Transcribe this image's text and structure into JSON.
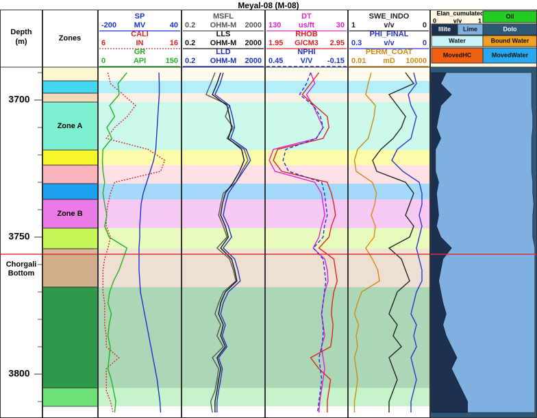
{
  "chart_data": {
    "type": "well-log",
    "title": "Meyal-08 (M-08)",
    "depth_label": [
      "Depth",
      "(m)"
    ],
    "zones_label": "Zones",
    "ylim": [
      3688,
      3816
    ],
    "yticks": [
      3700,
      3750,
      3800
    ],
    "yticks_minor": [
      3690,
      3710,
      3720,
      3730,
      3740,
      3760,
      3770,
      3780,
      3790,
      3810
    ],
    "marker": {
      "depth": 3756.25,
      "label": [
        "Chorgali",
        "Bottom"
      ],
      "label_depth": 3760,
      "color": "#e03030"
    },
    "zones": [
      {
        "top": 3688,
        "bottom": 3693,
        "color": "#fdf6cf"
      },
      {
        "top": 3693,
        "bottom": 3697.5,
        "color": "#43d8f0"
      },
      {
        "top": 3697.5,
        "bottom": 3700.75,
        "color": "#f2d9b8"
      },
      {
        "top": 3700.75,
        "bottom": 3718.25,
        "color": "#7cf0d0",
        "label": "Zone A"
      },
      {
        "top": 3718.25,
        "bottom": 3723.75,
        "color": "#f5f52a"
      },
      {
        "top": 3723.75,
        "bottom": 3730.5,
        "color": "#f9b4bd"
      },
      {
        "top": 3730.5,
        "bottom": 3736.25,
        "color": "#1ea0f0"
      },
      {
        "top": 3736.25,
        "bottom": 3746.75,
        "color": "#ea7be6",
        "label": "Zone B"
      },
      {
        "top": 3746.75,
        "bottom": 3754.25,
        "color": "#c6f55a"
      },
      {
        "top": 3754.25,
        "bottom": 3756.25,
        "color": "#d8b79a"
      },
      {
        "top": 3756.25,
        "bottom": 3768.25,
        "color": "#d2ae8c"
      },
      {
        "top": 3768.25,
        "bottom": 3805,
        "color": "#2e9a4a"
      },
      {
        "top": 3805,
        "bottom": 3811.75,
        "color": "#6ee27a"
      }
    ],
    "x": [
      3690,
      3694,
      3698,
      3702,
      3706,
      3710,
      3714,
      3718,
      3722,
      3726,
      3730,
      3734,
      3738,
      3742,
      3746,
      3750,
      3754,
      3758,
      3762,
      3766,
      3770,
      3774,
      3778,
      3782,
      3786,
      3790,
      3794,
      3798,
      3802,
      3806,
      3810,
      3814
    ],
    "tracks": [
      {
        "curves": [
          {
            "name": "SP",
            "unit": "MV",
            "xlim": [
              -200,
              40
            ],
            "color": "#1a2fd0",
            "style": "solid",
            "values": [
              -25,
              -24,
              -24,
              -26,
              -28,
              -30,
              -32,
              -34,
              -40,
              -50,
              -60,
              -70,
              -76,
              -78,
              -80,
              -80,
              -82,
              -82,
              -82,
              -80,
              -78,
              -72,
              -66,
              -60,
              -54,
              -48,
              -42,
              -36,
              -30,
              -26,
              -22,
              -20
            ]
          },
          {
            "name": "CALI",
            "unit": "IN",
            "xlim": [
              6,
              16
            ],
            "color": "#e02020",
            "style": "dotted",
            "values": [
              7.2,
              7.5,
              9,
              10.5,
              9.5,
              8,
              7,
              12,
              14,
              13.5,
              8,
              7.5,
              7.2,
              7,
              7,
              7.5,
              7.2,
              6.8,
              6.6,
              6.6,
              6.6,
              6.8,
              6.8,
              6.8,
              7,
              7,
              8.5,
              7,
              7,
              7,
              7.5,
              7.8
            ]
          },
          {
            "name": "GR",
            "unit": "API",
            "xlim": [
              0,
              150
            ],
            "color": "#20b020",
            "style": "solid",
            "values": [
              52,
              36,
              38,
              21,
              30,
              16,
              25,
              9,
              8,
              9,
              12,
              9,
              12,
              16,
              12,
              20,
              52,
              45,
              38,
              28,
              21,
              18,
              24,
              20,
              18,
              22,
              20,
              18,
              24,
              28,
              32,
              30
            ]
          }
        ]
      },
      {
        "curves": [
          {
            "name": "MSFL",
            "unit": "OHM-M",
            "xlim": [
              0.2,
              2000
            ],
            "log": true,
            "color": "#555555",
            "style": "solid",
            "values": [
              8,
              5,
              3,
              40,
              25,
              60,
              30,
              200,
              300,
              150,
              80,
              20,
              15,
              12,
              20,
              30,
              10,
              40,
              60,
              80,
              20,
              12,
              8,
              15,
              10,
              20,
              6,
              12,
              10,
              8,
              5,
              6
            ]
          },
          {
            "name": "LLS",
            "unit": "OHM-M",
            "xlim": [
              0.2,
              2000
            ],
            "log": true,
            "color": "#111111",
            "style": "solid",
            "values": [
              15,
              10,
              6,
              30,
              40,
              50,
              35,
              150,
              200,
              120,
              60,
              25,
              18,
              15,
              25,
              35,
              15,
              50,
              70,
              90,
              25,
              15,
              12,
              20,
              15,
              25,
              10,
              15,
              12,
              10,
              8,
              8
            ]
          },
          {
            "name": "LLD",
            "unit": "OHM-M",
            "xlim": [
              0.2,
              2000
            ],
            "log": true,
            "color": "#2030c0",
            "style": "solid",
            "values": [
              20,
              14,
              8,
              40,
              55,
              70,
              45,
              250,
              400,
              180,
              80,
              35,
              25,
              20,
              35,
              50,
              20,
              70,
              100,
              130,
              35,
              20,
              15,
              25,
              18,
              30,
              12,
              18,
              15,
              12,
              10,
              10
            ]
          }
        ]
      },
      {
        "curves": [
          {
            "name": "DT",
            "unit": "us/ft",
            "xlim": [
              130,
              30
            ],
            "color": "#e020d0",
            "style": "solid",
            "values": [
              75,
              70,
              80,
              72,
              66,
              60,
              68,
              120,
              125,
              118,
              70,
              62,
              60,
              58,
              62,
              65,
              72,
              58,
              55,
              54,
              58,
              60,
              62,
              60,
              58,
              62,
              60,
              58,
              60,
              62,
              64,
              65
            ]
          },
          {
            "name": "RHOB",
            "unit": "G/CM3",
            "xlim": [
              1.95,
              2.95
            ],
            "color": "#e02020",
            "style": "solid",
            "values": [
              2.6,
              2.5,
              2.4,
              2.55,
              2.7,
              2.72,
              2.65,
              2.1,
              2.05,
              2.15,
              2.7,
              2.75,
              2.78,
              2.8,
              2.75,
              2.72,
              2.6,
              2.78,
              2.8,
              2.82,
              2.78,
              2.76,
              2.75,
              2.77,
              2.76,
              2.74,
              2.5,
              2.6,
              2.74,
              2.72,
              2.7,
              2.7
            ]
          },
          {
            "name": "NPHI",
            "unit": "V/V",
            "xlim": [
              0.45,
              -0.15
            ],
            "color": "#2030d0",
            "style": "dashed",
            "values": [
              0.12,
              0.15,
              0.2,
              0.1,
              0.05,
              0.03,
              0.08,
              0.3,
              0.32,
              0.28,
              0.04,
              0.02,
              0.01,
              0.0,
              0.02,
              0.03,
              0.1,
              0.03,
              0.02,
              0.01,
              0.02,
              0.03,
              0.04,
              0.03,
              0.03,
              0.04,
              0.06,
              0.05,
              0.04,
              0.05,
              0.06,
              0.07
            ]
          }
        ]
      },
      {
        "curves": [
          {
            "name": "SWE_INDO",
            "unit": "v/v",
            "xlim": [
              1,
              0
            ],
            "color": "#222222",
            "style": "solid",
            "values": [
              0.3,
              0.2,
              0.5,
              0.4,
              0.3,
              0.35,
              0.45,
              0.6,
              0.7,
              0.65,
              0.3,
              0.2,
              0.25,
              0.3,
              0.2,
              0.25,
              0.5,
              0.35,
              0.3,
              0.25,
              0.4,
              0.45,
              0.5,
              0.4,
              0.45,
              0.35,
              0.5,
              0.45,
              0.4,
              0.45,
              0.5,
              0.5
            ]
          },
          {
            "name": "PHI_FINAL",
            "unit": "v/v",
            "xlim": [
              0.3,
              0
            ],
            "color": "#2a30d0",
            "style": "solid",
            "values": [
              0.06,
              0.05,
              0.08,
              0.07,
              0.05,
              0.06,
              0.07,
              0.12,
              0.14,
              0.1,
              0.04,
              0.03,
              0.03,
              0.04,
              0.03,
              0.04,
              0.05,
              0.04,
              0.03,
              0.03,
              0.05,
              0.06,
              0.07,
              0.05,
              0.06,
              0.05,
              0.07,
              0.06,
              0.05,
              0.06,
              0.07,
              0.07
            ]
          },
          {
            "name": "PERM_COAT",
            "unit": "mD",
            "xlim": [
              0.01,
              10000
            ],
            "log": true,
            "color": "#d08a10",
            "style": "solid",
            "values": [
              0.5,
              0.3,
              0.2,
              1,
              0.8,
              0.5,
              0.3,
              0.05,
              0.03,
              0.04,
              0.6,
              1.2,
              0.9,
              0.5,
              1,
              0.8,
              0.2,
              0.6,
              1.5,
              2,
              0.1,
              0.05,
              0.03,
              0.06,
              0.04,
              0.05,
              0.03,
              0.04,
              0.05,
              0.04,
              0.03,
              0.03
            ]
          }
        ]
      }
    ],
    "elan": {
      "title": "Elan_cumulated",
      "unit": "v/v",
      "xlim": [
        0,
        1
      ],
      "series": [
        {
          "name": "Illite",
          "color": "#1c3050",
          "values": [
            0.15,
            0.1,
            0.2,
            0.1,
            0.08,
            0.06,
            0.1,
            0.05,
            0.05,
            0.05,
            0.08,
            0.06,
            0.07,
            0.08,
            0.06,
            0.1,
            0.2,
            0.12,
            0.1,
            0.08,
            0.1,
            0.12,
            0.15,
            0.12,
            0.15,
            0.2,
            0.25,
            0.2,
            0.25,
            0.3,
            0.35,
            0.35
          ]
        },
        {
          "name": "Lime",
          "color": "#7fb0e0",
          "values": [
            0.8,
            0.85,
            0.75,
            0.85,
            0.88,
            0.9,
            0.85,
            0.9,
            0.9,
            0.9,
            0.88,
            0.9,
            0.9,
            0.88,
            0.9,
            0.86,
            0.78,
            0.86,
            0.88,
            0.9,
            0.88,
            0.86,
            0.83,
            0.86,
            0.83,
            0.78,
            0.73,
            0.78,
            0.73,
            0.68,
            0.63,
            0.63
          ]
        }
      ],
      "legend_other": [
        {
          "name": "Oil",
          "color": "#22cc22"
        },
        {
          "name": "Dolo",
          "color": "#2e5878"
        },
        {
          "name": "Water",
          "color": "#c8f4fa"
        },
        {
          "name": "Bound Water",
          "color": "#f0a020"
        },
        {
          "name": "MovedHC",
          "color": "#f06010"
        },
        {
          "name": "MovedWater",
          "color": "#28a8f0"
        }
      ],
      "rest_color": "#2e5878"
    }
  }
}
